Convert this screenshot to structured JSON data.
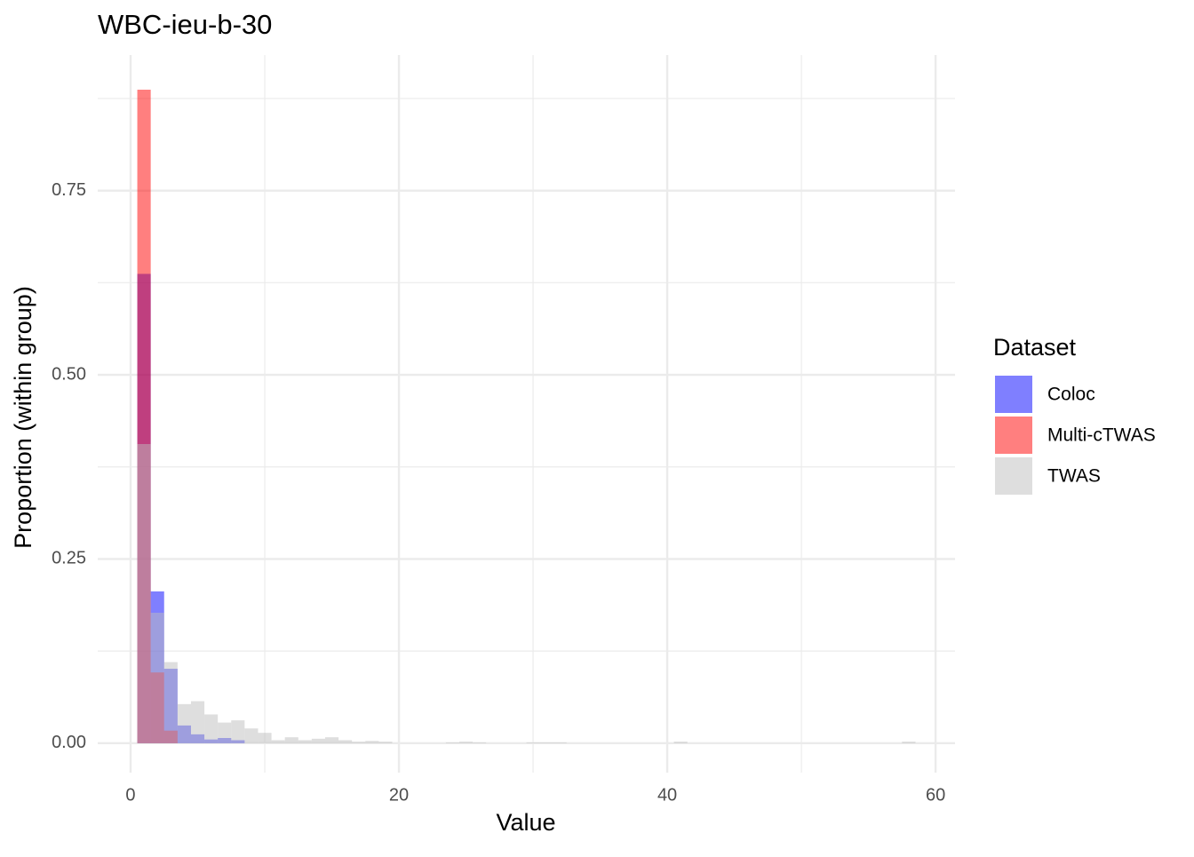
{
  "chart_data": {
    "type": "histogram",
    "title": "WBC-ieu-b-30",
    "x_label": "Value",
    "y_label": "Proportion (within group)",
    "bins": [
      0.5,
      1.5,
      2.5,
      3.5,
      4.5,
      5.5,
      6.5,
      7.5,
      8.5,
      9.5,
      10.5,
      11.5,
      12.5,
      13.5,
      14.5,
      15.5,
      16.5,
      17.5,
      18.5,
      19.5,
      20.5,
      21.5,
      22.5,
      23.5,
      24.5,
      25.5,
      26.5,
      27.5,
      28.5,
      29.5,
      30.5,
      31.5,
      32.5,
      33.5,
      34.5,
      35.5,
      36.5,
      37.5,
      38.5,
      39.5,
      40.5,
      41.5,
      42.5,
      43.5,
      44.5,
      45.5,
      46.5,
      47.5,
      48.5,
      49.5,
      50.5,
      51.5,
      52.5,
      53.5,
      54.5,
      55.5,
      56.5,
      57.5,
      58.5
    ],
    "series": [
      {
        "name": "Coloc",
        "color": "#0000ff",
        "values": [
          0.637,
          0.206,
          0.101,
          0.024,
          0.012,
          0.005,
          0.007,
          0.004,
          0,
          0,
          0,
          0,
          0,
          0,
          0,
          0,
          0,
          0,
          0,
          0,
          0,
          0,
          0,
          0,
          0,
          0,
          0,
          0,
          0,
          0,
          0,
          0,
          0,
          0,
          0,
          0,
          0,
          0,
          0,
          0,
          0,
          0,
          0,
          0,
          0,
          0,
          0,
          0,
          0,
          0,
          0,
          0,
          0,
          0,
          0,
          0,
          0,
          0
        ]
      },
      {
        "name": "Multi-cTWAS",
        "color": "#ff0000",
        "values": [
          0.887,
          0.096,
          0.017,
          0,
          0,
          0,
          0,
          0,
          0,
          0,
          0,
          0,
          0,
          0,
          0,
          0,
          0,
          0,
          0,
          0,
          0,
          0,
          0,
          0,
          0,
          0,
          0,
          0,
          0,
          0,
          0,
          0,
          0,
          0,
          0,
          0,
          0,
          0,
          0,
          0,
          0,
          0,
          0,
          0,
          0,
          0,
          0,
          0,
          0,
          0,
          0,
          0,
          0,
          0,
          0,
          0,
          0,
          0
        ]
      },
      {
        "name": "TWAS",
        "color": "#bebebe",
        "values": [
          0.406,
          0.177,
          0.11,
          0.053,
          0.057,
          0.039,
          0.028,
          0.031,
          0.02,
          0.014,
          0.004,
          0.008,
          0.004,
          0.006,
          0.008,
          0.004,
          0.002,
          0.003,
          0.002,
          0,
          0,
          0,
          0,
          0.001,
          0.002,
          0.001,
          0,
          0,
          0,
          0.001,
          0.001,
          0.001,
          0,
          0,
          0,
          0,
          0,
          0,
          0,
          0,
          0.002,
          0,
          0,
          0,
          0,
          0,
          0,
          0,
          0,
          0,
          0,
          0,
          0,
          0,
          0,
          0,
          0,
          0.002
        ]
      }
    ],
    "opacity": 0.5,
    "xlim": [
      -2.45,
      61.45
    ],
    "ylim": [
      -0.04,
      0.934
    ],
    "xticks": [
      0,
      20,
      40,
      60
    ],
    "yticks": [
      {
        "value": 0,
        "label": "0.00"
      },
      {
        "value": 0.25,
        "label": "0.25"
      },
      {
        "value": 0.5,
        "label": "0.50"
      },
      {
        "value": 0.75,
        "label": "0.75"
      }
    ],
    "x_minor_ticks": [
      10,
      30,
      50
    ],
    "y_minor_ticks": [
      0.125,
      0.375,
      0.625,
      0.875
    ],
    "grid": true,
    "legend_title": "Dataset",
    "legend_position": "right"
  }
}
